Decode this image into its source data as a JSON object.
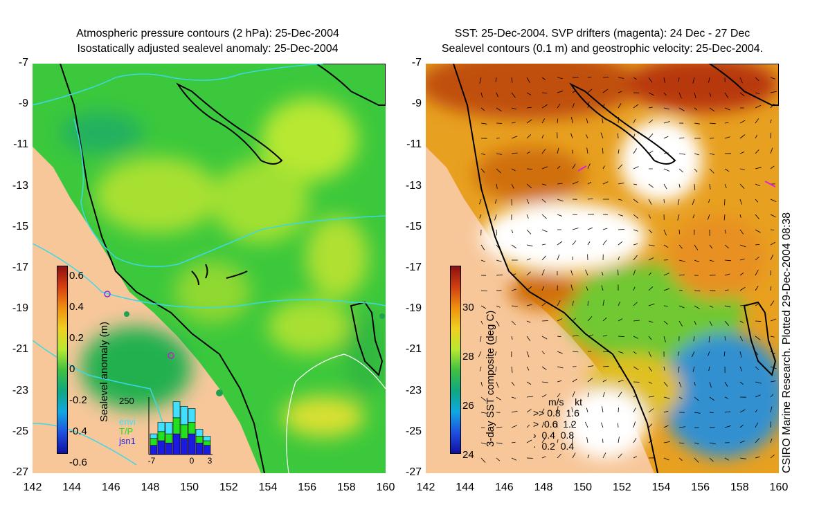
{
  "left_panel": {
    "title_line1": "Atmospheric pressure contours (2 hPa): 25-Dec-2004",
    "title_line2": "Isostatically adjusted sealevel anomaly: 25-Dec-2004",
    "colorbar": {
      "label": "Sealevel anomaly (m)",
      "ticks": [
        "0.6",
        "0.4",
        "0.2",
        "0",
        "-0.2",
        "-0.4",
        "-0.6"
      ]
    },
    "inset": {
      "ymax_label": "250",
      "xticks": [
        "-7",
        "0",
        "3"
      ],
      "legend": [
        {
          "label": "envi",
          "color": "#40e0ff"
        },
        {
          "label": "T/P",
          "color": "#20e020"
        },
        {
          "label": "jsn1",
          "color": "#1a1ae0"
        }
      ],
      "bars": [
        {
          "envi": 20,
          "tp": 30,
          "jsn1": 40
        },
        {
          "envi": 40,
          "tp": 40,
          "jsn1": 60
        },
        {
          "envi": 50,
          "tp": 40,
          "jsn1": 50
        },
        {
          "envi": 70,
          "tp": 70,
          "jsn1": 90
        },
        {
          "envi": 80,
          "tp": 60,
          "jsn1": 70
        },
        {
          "envi": 60,
          "tp": 50,
          "jsn1": 90
        },
        {
          "envi": 30,
          "tp": 30,
          "jsn1": 50
        },
        {
          "envi": 20,
          "tp": 20,
          "jsn1": 40
        }
      ]
    }
  },
  "right_panel": {
    "title_line1": "SST: 25-Dec-2004. SVP drifters (magenta): 24 Dec - 27 Dec",
    "title_line2": "Sealevel contours (0.1 m) and geostrophic velocity: 25-Dec-2004.",
    "colorbar": {
      "label": "3-day SST composite (deg C)",
      "ticks": [
        "30",
        "28",
        "26",
        "24"
      ]
    },
    "velocity_legend": {
      "header_ms": "m/s",
      "header_kt": "kt",
      "rows": [
        {
          "ms": "0.8",
          "kt": "1.6"
        },
        {
          "ms": "0.6",
          "kt": "1.2"
        },
        {
          "ms": "0.4",
          "kt": "0.8"
        },
        {
          "ms": "0.2",
          "kt": "0.4"
        }
      ]
    },
    "credit": "CSIRO Marine Research. Plotted 29-Dec-2004 08:38"
  },
  "axes": {
    "y_ticks": [
      "-7",
      "-9",
      "-11",
      "-13",
      "-15",
      "-17",
      "-19",
      "-21",
      "-23",
      "-25",
      "-27"
    ],
    "x_ticks": [
      "142",
      "144",
      "146",
      "148",
      "150",
      "152",
      "154",
      "156",
      "158",
      "160"
    ]
  },
  "colors": {
    "land": "#f7c79a",
    "sla_green": "#3cc83c",
    "sla_yellow": "#b8e830",
    "sst_warm": "#d87010",
    "sst_cool": "#2080d0"
  }
}
